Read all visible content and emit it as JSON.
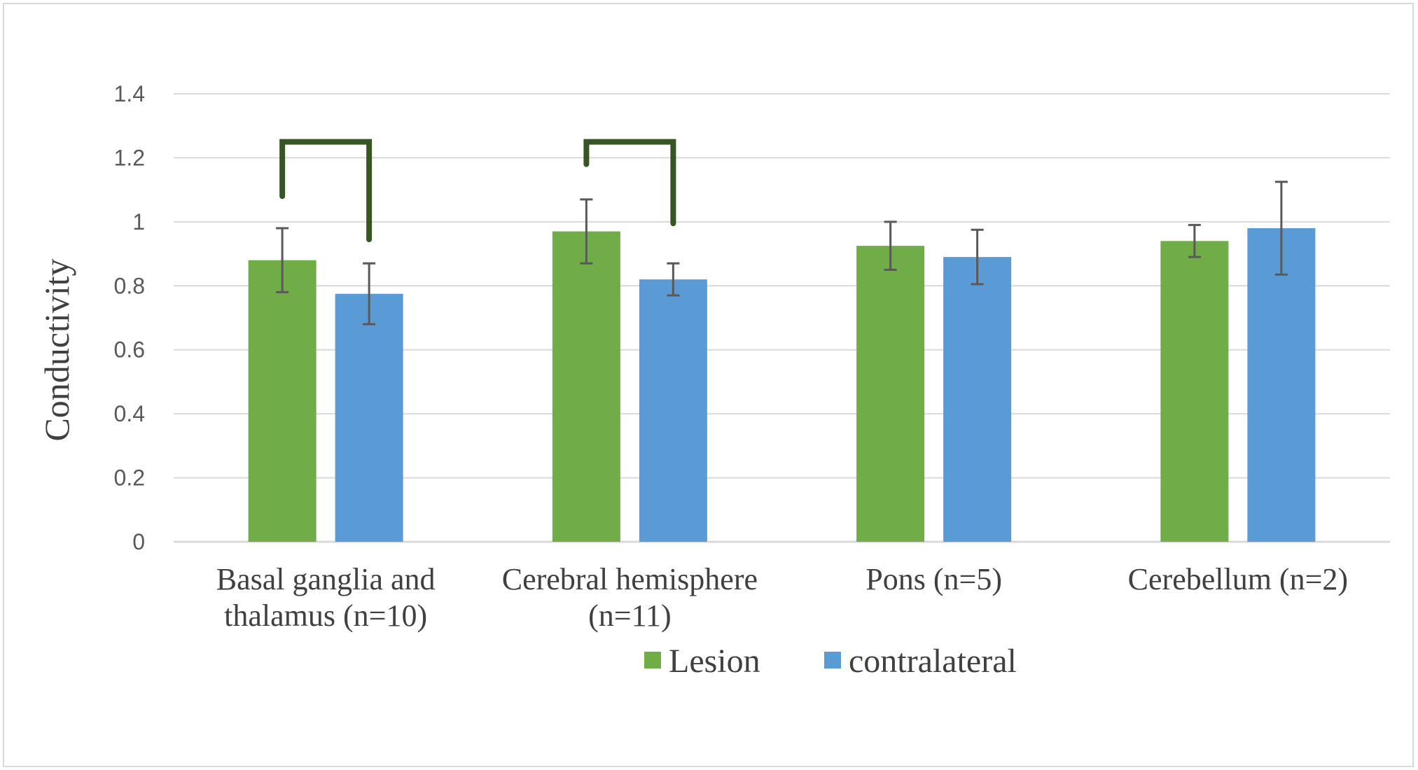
{
  "chart_data": {
    "type": "bar",
    "title": "",
    "xlabel": "",
    "ylabel": "Conductivity",
    "ylim": [
      0,
      1.4
    ],
    "yticks": [
      "0",
      "0.2",
      "0.4",
      "0.6",
      "0.8",
      "1",
      "1.2",
      "1.4"
    ],
    "grid": true,
    "categories": [
      [
        "Basal ganglia and",
        "thalamus (n=10)"
      ],
      [
        "Cerebral hemisphere",
        "(n=11)"
      ],
      [
        "Pons (n=5)"
      ],
      [
        "Cerebellum (n=2)"
      ]
    ],
    "series": [
      {
        "name": "Lesion",
        "color": "#70ad47",
        "values": [
          0.88,
          0.97,
          0.925,
          0.94
        ],
        "error": [
          0.1,
          0.1,
          0.075,
          0.05
        ]
      },
      {
        "name": "contralateral",
        "color": "#5b9bd5",
        "values": [
          0.775,
          0.82,
          0.89,
          0.98
        ],
        "error": [
          0.095,
          0.05,
          0.085,
          0.145
        ]
      }
    ],
    "significance_brackets": [
      {
        "category": 0,
        "color": "#375623",
        "level": 1.25,
        "left_end": 1.08,
        "right_end": 0.945
      },
      {
        "category": 1,
        "color": "#375623",
        "level": 1.25,
        "left_end": 1.18,
        "right_end": 0.995
      }
    ],
    "legend_position": "bottom-center"
  }
}
